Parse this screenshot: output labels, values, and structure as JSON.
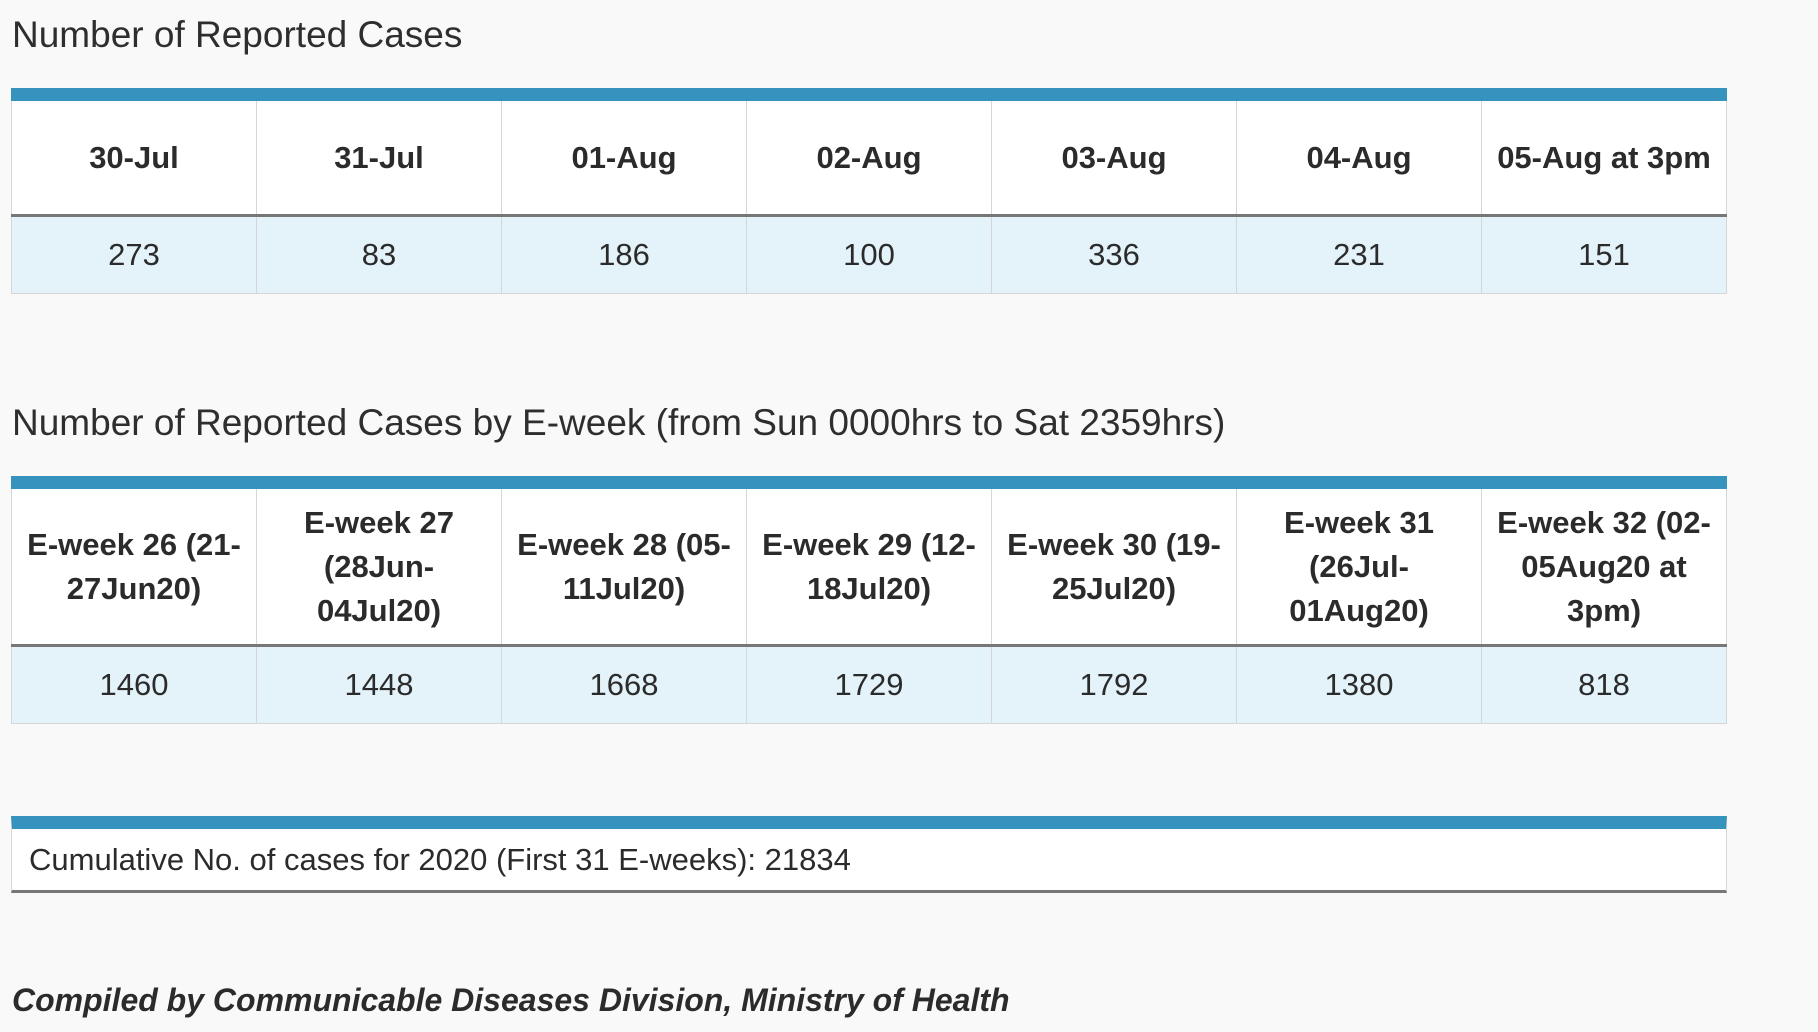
{
  "daily_section": {
    "title": "Number of Reported Cases",
    "headers": [
      "30-Jul",
      "31-Jul",
      "01-Aug",
      "02-Aug",
      "03-Aug",
      "04-Aug",
      "05-Aug at 3pm"
    ],
    "values": [
      "273",
      "83",
      "186",
      "100",
      "336",
      "231",
      "151"
    ]
  },
  "eweek_section": {
    "title": "Number of Reported Cases by E-week (from Sun 0000hrs to Sat 2359hrs)",
    "headers": [
      "E-week 26 (21-27Jun20)",
      "E-week 27 (28Jun-04Jul20)",
      "E-week 28 (05-11Jul20)",
      "E-week 29 (12-18Jul20)",
      "E-week 30 (19-25Jul20)",
      "E-week 31 (26Jul-01Aug20)",
      "E-week 32 (02-05Aug20 at 3pm)"
    ],
    "values": [
      "1460",
      "1448",
      "1668",
      "1729",
      "1792",
      "1380",
      "818"
    ]
  },
  "cumulative": {
    "text": "Cumulative No. of cases for 2020 (First 31 E-weeks): 21834"
  },
  "footer": {
    "text": "Compiled by Communicable Diseases Division, Ministry of Health"
  },
  "colors": {
    "accent_bar": "#3593bd",
    "value_row_bg": "#e4f3fa",
    "page_bg": "#f9f9f9"
  }
}
